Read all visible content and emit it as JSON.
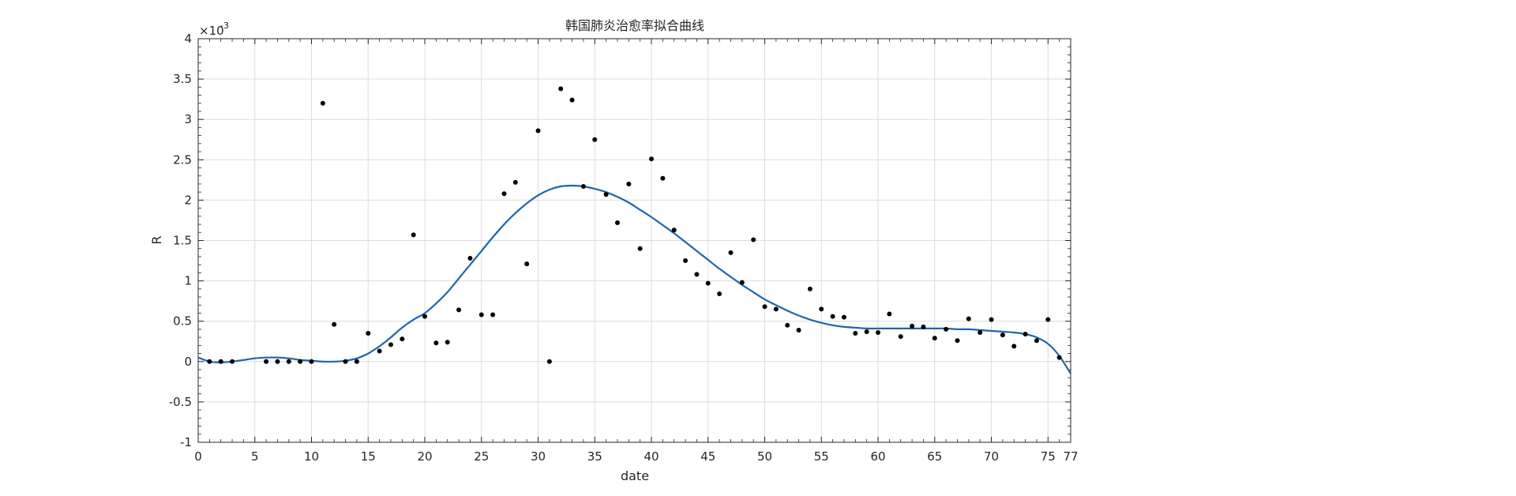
{
  "chart_data": {
    "type": "scatter",
    "title": "韩国肺炎治愈率拟合曲线",
    "xlabel": "date",
    "ylabel": "R",
    "y_exponent_label": "×10",
    "y_exponent_power": "-3",
    "xlim": [
      0,
      77
    ],
    "ylim": [
      -1,
      4
    ],
    "xticks": [
      0,
      5,
      10,
      15,
      20,
      25,
      30,
      35,
      40,
      45,
      50,
      55,
      60,
      65,
      70,
      75,
      77
    ],
    "yticks": [
      -1,
      -0.5,
      0,
      0.5,
      1,
      1.5,
      2,
      2.5,
      3,
      3.5,
      4
    ],
    "grid": true,
    "marker_color": "#000000",
    "line_color": "#1f66ad",
    "series": [
      {
        "kind": "points",
        "x": [
          1,
          2,
          3,
          6,
          7,
          8,
          9,
          10,
          11,
          12,
          13,
          14,
          15,
          16,
          17,
          18,
          19,
          20,
          21,
          22,
          23,
          24,
          25,
          26,
          27,
          28,
          29,
          30,
          31,
          32,
          33,
          34,
          35,
          36,
          37,
          38,
          39,
          40,
          41,
          42,
          43,
          44,
          45,
          46,
          47,
          48,
          49,
          50,
          51,
          52,
          53,
          54,
          55,
          56,
          57,
          58,
          59,
          60,
          61,
          62,
          63,
          64,
          65,
          66,
          67,
          68,
          69,
          70,
          71,
          72,
          73,
          74,
          75,
          76
        ],
        "values": [
          0,
          0,
          0,
          0,
          0,
          0,
          0,
          0,
          3.2,
          0.46,
          0,
          0,
          0.35,
          0.13,
          0.21,
          0.28,
          1.57,
          0.56,
          0.23,
          0.24,
          0.64,
          1.28,
          0.58,
          0.58,
          2.08,
          2.22,
          1.21,
          2.86,
          0,
          3.38,
          3.24,
          2.17,
          2.75,
          2.07,
          1.72,
          2.2,
          1.4,
          2.51,
          2.27,
          1.63,
          1.25,
          1.08,
          0.97,
          0.84,
          1.35,
          0.98,
          1.51,
          0.68,
          0.65,
          0.45,
          0.39,
          0.9,
          0.65,
          0.56,
          0.55,
          0.35,
          0.37,
          0.36,
          0.59,
          0.31,
          0.44,
          0.43,
          0.29,
          0.4,
          0.26,
          0.53,
          0.36,
          0.52,
          0.33,
          0.19,
          0.34,
          0.26,
          0.52,
          0.05
        ]
      },
      {
        "kind": "fit-line",
        "x": [
          0,
          1,
          2,
          3,
          4,
          5,
          6,
          7,
          8,
          9,
          10,
          11,
          12,
          13,
          14,
          15,
          16,
          17,
          18,
          19,
          20,
          21,
          22,
          23,
          24,
          25,
          26,
          27,
          28,
          29,
          30,
          31,
          32,
          33,
          34,
          35,
          36,
          37,
          38,
          39,
          40,
          41,
          42,
          43,
          44,
          45,
          46,
          47,
          48,
          49,
          50,
          51,
          52,
          53,
          54,
          55,
          56,
          57,
          58,
          59,
          60,
          61,
          62,
          63,
          64,
          65,
          66,
          67,
          68,
          69,
          70,
          71,
          72,
          73,
          74,
          75,
          76,
          77
        ],
        "values": [
          0.05,
          0.0,
          -0.01,
          0.0,
          0.02,
          0.04,
          0.05,
          0.05,
          0.04,
          0.02,
          0.01,
          0.0,
          0.0,
          0.01,
          0.04,
          0.1,
          0.19,
          0.3,
          0.42,
          0.52,
          0.6,
          0.72,
          0.86,
          1.03,
          1.2,
          1.37,
          1.54,
          1.7,
          1.84,
          1.96,
          2.06,
          2.13,
          2.17,
          2.18,
          2.17,
          2.14,
          2.1,
          2.04,
          1.97,
          1.88,
          1.79,
          1.69,
          1.59,
          1.48,
          1.37,
          1.26,
          1.15,
          1.05,
          0.95,
          0.86,
          0.77,
          0.7,
          0.63,
          0.57,
          0.52,
          0.48,
          0.45,
          0.43,
          0.42,
          0.41,
          0.41,
          0.41,
          0.41,
          0.41,
          0.41,
          0.41,
          0.41,
          0.4,
          0.4,
          0.39,
          0.38,
          0.37,
          0.36,
          0.34,
          0.3,
          0.22,
          0.07,
          -0.15
        ]
      }
    ]
  }
}
